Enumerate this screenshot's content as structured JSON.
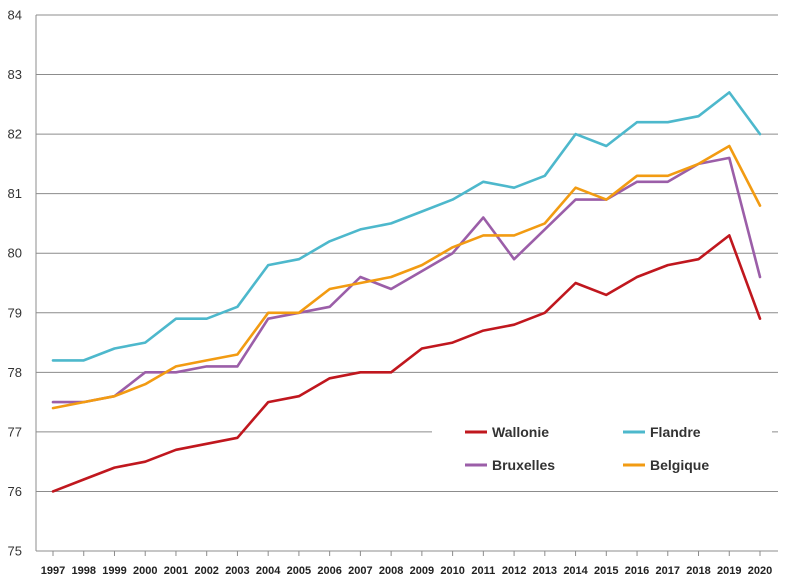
{
  "chart_data": {
    "type": "line",
    "title": "",
    "xlabel": "",
    "ylabel": "",
    "ylim": [
      75,
      84
    ],
    "yticks": [
      75,
      76,
      77,
      78,
      79,
      80,
      81,
      82,
      83,
      84
    ],
    "grid": "horizontal",
    "legend_position": "bottom-right",
    "categories": [
      "1997",
      "1998",
      "1999",
      "2000",
      "2001",
      "2002",
      "2003",
      "2004",
      "2005",
      "2006",
      "2007",
      "2008",
      "2009",
      "2010",
      "2011",
      "2012",
      "2013",
      "2014",
      "2015",
      "2016",
      "2017",
      "2018",
      "2019",
      "2020"
    ],
    "series": [
      {
        "name": "Wallonie",
        "color": "#c0171e",
        "values": [
          76.0,
          76.2,
          76.4,
          76.5,
          76.7,
          76.8,
          76.9,
          77.5,
          77.6,
          77.9,
          78.0,
          78.0,
          78.4,
          78.5,
          78.7,
          78.8,
          79.0,
          79.5,
          79.3,
          79.6,
          79.8,
          79.9,
          80.3,
          78.9
        ]
      },
      {
        "name": "Flandre",
        "color": "#4db8cc",
        "values": [
          78.2,
          78.2,
          78.4,
          78.5,
          78.9,
          78.9,
          79.1,
          79.8,
          79.9,
          80.2,
          80.4,
          80.5,
          80.7,
          80.9,
          81.2,
          81.1,
          81.3,
          82.0,
          81.8,
          82.2,
          82.2,
          82.3,
          82.7,
          82.0
        ]
      },
      {
        "name": "Bruxelles",
        "color": "#9b5ea8",
        "values": [
          77.5,
          77.5,
          77.6,
          78.0,
          78.0,
          78.1,
          78.1,
          78.9,
          79.0,
          79.1,
          79.6,
          79.4,
          79.7,
          80.0,
          80.6,
          79.9,
          80.4,
          80.9,
          80.9,
          81.2,
          81.2,
          81.5,
          81.6,
          79.6
        ]
      },
      {
        "name": "Belgique",
        "color": "#f29b12",
        "values": [
          77.4,
          77.5,
          77.6,
          77.8,
          78.1,
          78.2,
          78.3,
          79.0,
          79.0,
          79.4,
          79.5,
          79.6,
          79.8,
          80.1,
          80.3,
          80.3,
          80.5,
          81.1,
          80.9,
          81.3,
          81.3,
          81.5,
          81.8,
          80.8
        ]
      }
    ]
  }
}
